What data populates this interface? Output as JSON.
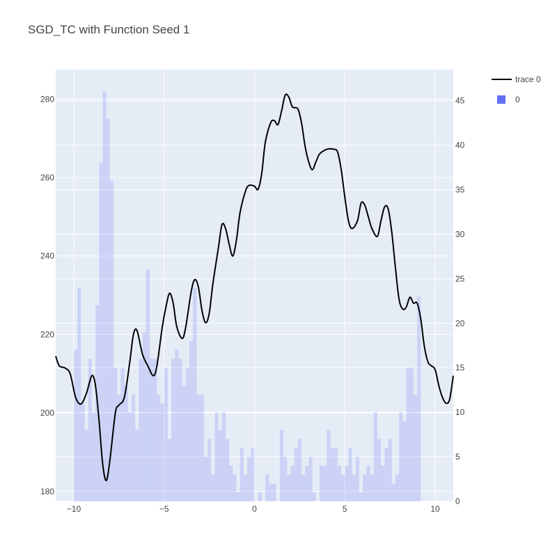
{
  "title": "SGD_TC with Function Seed 1",
  "colors": {
    "plot_bg": "#e5ecf6",
    "grid": "#ffffff",
    "line": "#000000",
    "bar": "#636efa",
    "bar_opacity": 0.2,
    "text": "#444444"
  },
  "chart_data": {
    "type": "line",
    "title": "SGD_TC with Function Seed 1",
    "grid": true,
    "legend_position": "top-right",
    "xaxis": {
      "range": [
        -11,
        11
      ],
      "ticks": [
        -10,
        -5,
        0,
        5,
        10
      ],
      "tick_labels": [
        "−10",
        "−5",
        "0",
        "5",
        "10"
      ]
    },
    "yaxis_left": {
      "range": [
        177.5,
        287.5
      ],
      "ticks": [
        180,
        200,
        220,
        240,
        260,
        280
      ]
    },
    "yaxis_right": {
      "range": [
        0,
        48.5
      ],
      "ticks": [
        0,
        5,
        10,
        15,
        20,
        25,
        30,
        35,
        40,
        45
      ]
    },
    "legend": [
      {
        "name": "trace 0",
        "kind": "line"
      },
      {
        "name": "0",
        "kind": "bar"
      }
    ],
    "line_series": {
      "name": "trace 0",
      "points": [
        [
          -11.0,
          214.5
        ],
        [
          -10.8,
          212
        ],
        [
          -10.5,
          211.5
        ],
        [
          -10.2,
          210
        ],
        [
          -9.9,
          204
        ],
        [
          -9.6,
          202.3
        ],
        [
          -9.3,
          205
        ],
        [
          -9.0,
          209.5
        ],
        [
          -8.8,
          207
        ],
        [
          -8.6,
          198
        ],
        [
          -8.4,
          187
        ],
        [
          -8.2,
          182.8
        ],
        [
          -8.0,
          188
        ],
        [
          -7.7,
          200
        ],
        [
          -7.5,
          202
        ],
        [
          -7.2,
          204
        ],
        [
          -6.9,
          213
        ],
        [
          -6.7,
          220
        ],
        [
          -6.5,
          221
        ],
        [
          -6.2,
          215
        ],
        [
          -5.9,
          212
        ],
        [
          -5.6,
          209.5
        ],
        [
          -5.4,
          212
        ],
        [
          -5.1,
          222
        ],
        [
          -4.9,
          227
        ],
        [
          -4.7,
          230.5
        ],
        [
          -4.5,
          228
        ],
        [
          -4.3,
          222
        ],
        [
          -4.0,
          219
        ],
        [
          -3.8,
          222
        ],
        [
          -3.5,
          231
        ],
        [
          -3.3,
          234
        ],
        [
          -3.1,
          232
        ],
        [
          -2.9,
          226
        ],
        [
          -2.7,
          223
        ],
        [
          -2.5,
          225.5
        ],
        [
          -2.3,
          233
        ],
        [
          -2.0,
          242
        ],
        [
          -1.8,
          248
        ],
        [
          -1.6,
          247
        ],
        [
          -1.4,
          243
        ],
        [
          -1.2,
          240
        ],
        [
          -1.0,
          244
        ],
        [
          -0.8,
          251
        ],
        [
          -0.5,
          256.5
        ],
        [
          -0.3,
          258
        ],
        [
          0.0,
          257.8
        ],
        [
          0.2,
          257
        ],
        [
          0.4,
          261
        ],
        [
          0.6,
          269
        ],
        [
          0.9,
          274
        ],
        [
          1.1,
          274.5
        ],
        [
          1.3,
          273.5
        ],
        [
          1.5,
          277
        ],
        [
          1.7,
          281
        ],
        [
          1.9,
          280.5
        ],
        [
          2.1,
          278
        ],
        [
          2.4,
          277.5
        ],
        [
          2.6,
          274
        ],
        [
          2.8,
          268
        ],
        [
          3.0,
          264
        ],
        [
          3.2,
          262
        ],
        [
          3.4,
          264
        ],
        [
          3.6,
          266
        ],
        [
          3.9,
          267
        ],
        [
          4.1,
          267.3
        ],
        [
          4.4,
          267.2
        ],
        [
          4.6,
          266.5
        ],
        [
          4.8,
          262
        ],
        [
          5.0,
          255
        ],
        [
          5.2,
          249
        ],
        [
          5.4,
          247
        ],
        [
          5.7,
          249
        ],
        [
          5.9,
          253.5
        ],
        [
          6.1,
          253
        ],
        [
          6.3,
          250
        ],
        [
          6.5,
          247
        ],
        [
          6.8,
          245
        ],
        [
          7.0,
          249
        ],
        [
          7.2,
          252.5
        ],
        [
          7.4,
          252
        ],
        [
          7.6,
          246
        ],
        [
          7.8,
          237
        ],
        [
          8.0,
          229
        ],
        [
          8.2,
          226.5
        ],
        [
          8.4,
          227
        ],
        [
          8.6,
          229.5
        ],
        [
          8.8,
          228
        ],
        [
          9.0,
          228
        ],
        [
          9.2,
          224
        ],
        [
          9.4,
          217
        ],
        [
          9.6,
          213
        ],
        [
          9.8,
          212
        ],
        [
          10.0,
          211
        ],
        [
          10.2,
          207
        ],
        [
          10.4,
          204
        ],
        [
          10.6,
          202.5
        ],
        [
          10.8,
          203.5
        ],
        [
          11.0,
          209.5
        ]
      ]
    },
    "histogram": {
      "name": "0",
      "axis": "right",
      "bin_start": -10.0,
      "bin_width": 0.2,
      "counts": [
        17,
        24,
        11,
        8,
        16,
        10,
        22,
        38,
        46,
        43,
        36,
        15,
        12,
        15,
        13,
        10,
        12,
        8,
        16,
        19,
        26,
        16,
        16,
        12,
        11,
        15,
        7,
        16,
        17,
        16,
        13,
        15,
        18,
        24,
        12,
        12,
        5,
        7,
        3,
        10,
        8,
        10,
        7,
        4,
        3,
        1,
        6,
        3,
        5,
        6,
        0,
        1,
        0,
        3,
        2,
        2,
        0,
        8,
        5,
        3,
        4,
        6,
        7,
        3,
        4,
        5,
        1,
        0,
        4,
        4,
        8,
        6,
        6,
        4,
        3,
        4,
        6,
        3,
        5,
        1,
        3,
        4,
        3,
        10,
        7,
        4,
        6,
        7,
        2,
        3,
        10,
        9,
        15,
        15,
        12,
        23
      ]
    }
  }
}
